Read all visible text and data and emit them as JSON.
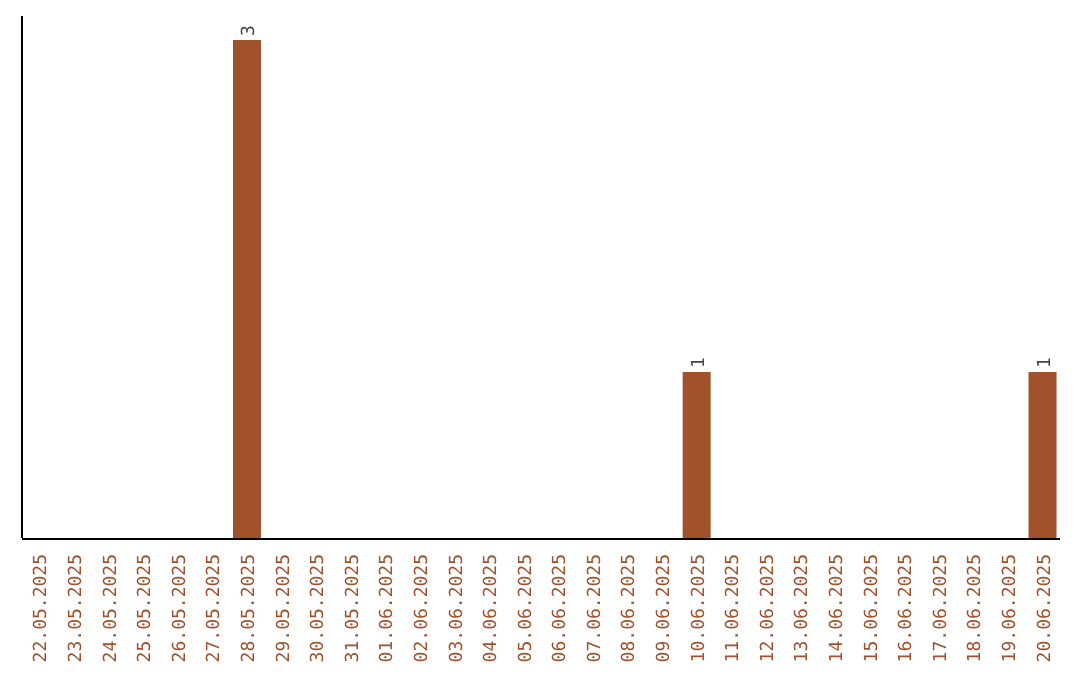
{
  "chart_data": {
    "type": "bar",
    "categories": [
      "22.05.2025",
      "23.05.2025",
      "24.05.2025",
      "25.05.2025",
      "26.05.2025",
      "27.05.2025",
      "28.05.2025",
      "29.05.2025",
      "30.05.2025",
      "31.05.2025",
      "01.06.2025",
      "02.06.2025",
      "03.06.2025",
      "04.06.2025",
      "05.06.2025",
      "06.06.2025",
      "07.06.2025",
      "08.06.2025",
      "09.06.2025",
      "10.06.2025",
      "11.06.2025",
      "12.06.2025",
      "13.06.2025",
      "14.06.2025",
      "15.06.2025",
      "16.06.2025",
      "17.06.2025",
      "18.06.2025",
      "19.06.2025",
      "20.06.2025"
    ],
    "values": [
      0,
      0,
      0,
      0,
      0,
      0,
      3,
      0,
      0,
      0,
      0,
      0,
      0,
      0,
      0,
      0,
      0,
      0,
      0,
      1,
      0,
      0,
      0,
      0,
      0,
      0,
      0,
      0,
      0,
      1
    ],
    "color": "#a0522d",
    "value_labels": [
      null,
      null,
      null,
      null,
      null,
      null,
      "3",
      null,
      null,
      null,
      null,
      null,
      null,
      null,
      null,
      null,
      null,
      null,
      null,
      "1",
      null,
      null,
      null,
      null,
      null,
      null,
      null,
      null,
      null,
      "1"
    ],
    "tick_labels": "x"
  }
}
